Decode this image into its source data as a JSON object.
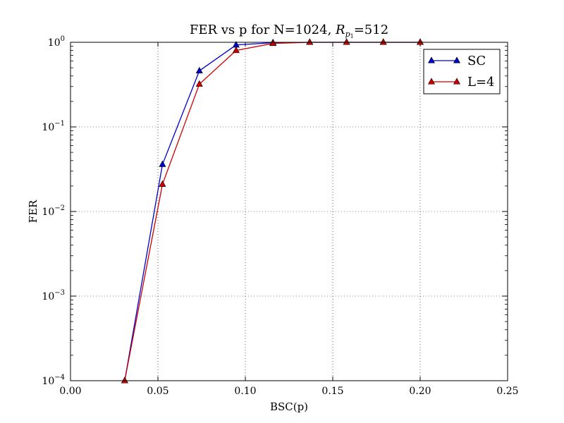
{
  "chart_data": {
    "type": "line",
    "title": {
      "prefix": "FER vs p for N=1024, ",
      "math_base": "R",
      "math_sub": "p",
      "math_subsub": "1",
      "suffix": "=512"
    },
    "xlabel": "BSC(p)",
    "ylabel": "FER",
    "xscale": "linear",
    "yscale": "log",
    "xlim": [
      0.0,
      0.25
    ],
    "ylim": [
      0.0001,
      1
    ],
    "xticks": [
      0.0,
      0.05,
      0.1,
      0.15,
      0.2,
      0.25
    ],
    "xtick_labels": [
      "0.00",
      "0.05",
      "0.10",
      "0.15",
      "0.20",
      "0.25"
    ],
    "yticks": [
      {
        "value": 1,
        "base": "10",
        "exp": "0"
      },
      {
        "value": 0.1,
        "base": "10",
        "exp": "−1"
      },
      {
        "value": 0.01,
        "base": "10",
        "exp": "−2"
      },
      {
        "value": 0.001,
        "base": "10",
        "exp": "−3"
      },
      {
        "value": 0.0001,
        "base": "10",
        "exp": "−4"
      }
    ],
    "grid": true,
    "legend_position": "top-right",
    "series": [
      {
        "name": "SC",
        "color": "#0000cc",
        "marker": "triangle-up",
        "x": [
          0.031,
          0.0526,
          0.0737,
          0.0947,
          0.1158,
          0.1368,
          0.1579,
          0.1789,
          0.2
        ],
        "y": [
          0.0001,
          0.036,
          0.46,
          0.93,
          0.99,
          1.0,
          1.0,
          1.0,
          1.0
        ]
      },
      {
        "name": "L=4",
        "color": "#cc0000",
        "marker": "triangle-up",
        "x": [
          0.031,
          0.0526,
          0.0737,
          0.0947,
          0.1158,
          0.1368,
          0.1579,
          0.1789,
          0.2
        ],
        "y": [
          0.0001,
          0.021,
          0.32,
          0.8,
          0.97,
          1.0,
          1.0,
          1.0,
          1.0
        ]
      }
    ]
  }
}
